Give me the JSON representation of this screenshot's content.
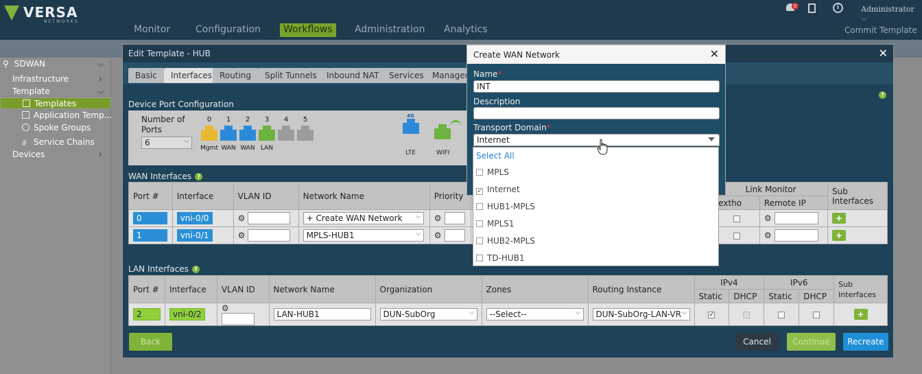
{
  "app": {
    "logo_text": "VERSA",
    "logo_sub": "NETWORKS",
    "nav": [
      "Monitor",
      "Configuration",
      "Workflows",
      "Administration",
      "Analytics"
    ],
    "nav_active": "Workflows",
    "commit": "Commit Template",
    "notif_count": "0",
    "user": "Administrator"
  },
  "sidebar": {
    "root": "SDWAN",
    "items": [
      {
        "label": "Infrastructure"
      },
      {
        "label": "Template"
      },
      {
        "label": "Templates"
      },
      {
        "label": "Application Temp..."
      },
      {
        "label": "Spoke Groups"
      },
      {
        "label": "Service Chains"
      },
      {
        "label": "Devices"
      }
    ]
  },
  "edit_template": {
    "title": "Edit Template - HUB",
    "tabs": [
      "Basic",
      "Interfaces",
      "Routing",
      "Split Tunnels",
      "Inbound NAT",
      "Services",
      "Managem"
    ],
    "active_tab": "Interfaces",
    "device_port": {
      "label": "Device Port Configuration",
      "number_of_ports_label": "Number of Ports",
      "number_of_ports_value": "6",
      "ports": [
        {
          "num": "0",
          "role": "Mgmt",
          "color": "#e8b830"
        },
        {
          "num": "1",
          "role": "WAN",
          "color": "#2b8ad8"
        },
        {
          "num": "2",
          "role": "WAN",
          "color": "#2b8ad8"
        },
        {
          "num": "3",
          "role": "LAN",
          "color": "#6db33f"
        },
        {
          "num": "4",
          "role": "",
          "color": "#9c9c9c"
        },
        {
          "num": "5",
          "role": "",
          "color": "#9c9c9c"
        }
      ],
      "lte": {
        "label": "LTE",
        "badge": "4G"
      },
      "wifi": {
        "label": "WIFI"
      }
    },
    "wan": {
      "label": "WAN Interfaces",
      "headers": [
        "Port #",
        "Interface",
        "VLAN ID",
        "Network Name",
        "Priority"
      ],
      "link_monitor": "Link Monitor",
      "nexthop": "extho",
      "remote_ip": "Remote IP",
      "sub_interfaces": "Sub Interfaces",
      "rows": [
        {
          "port": "0",
          "interface": "vni-0/0",
          "network": "+ Create WAN Network"
        },
        {
          "port": "1",
          "interface": "vni-0/1",
          "network": "MPLS-HUB1"
        }
      ]
    },
    "lan": {
      "label": "LAN Interfaces",
      "headers": [
        "Port #",
        "Interface",
        "VLAN ID",
        "Network Name",
        "Organization",
        "Zones",
        "Routing Instance"
      ],
      "ipv4": "IPv4",
      "ipv6": "IPv6",
      "static": "Static",
      "dhcp": "DHCP",
      "sub_interfaces": "Sub Interfaces",
      "row": {
        "port": "2",
        "interface": "vni-0/2",
        "network": "LAN-HUB1",
        "organization": "DUN-SubOrg",
        "zones": "--Select--",
        "routing": "DUN-SubOrg-LAN-VR"
      }
    },
    "buttons": {
      "back": "Back",
      "cancel": "Cancel",
      "continue": "Continue",
      "recreate": "Recreate"
    }
  },
  "create_wan": {
    "title": "Create WAN Network",
    "name_label": "Name",
    "name_value": "INT",
    "desc_label": "Description",
    "desc_value": "",
    "td_label": "Transport Domain",
    "td_value": "Internet",
    "select_all": "Select All",
    "options": [
      {
        "label": "MPLS",
        "checked": false
      },
      {
        "label": "Internet",
        "checked": true
      },
      {
        "label": "HUB1-MPLS",
        "checked": false
      },
      {
        "label": "MPLS1",
        "checked": false
      },
      {
        "label": "HUB2-MPLS",
        "checked": false
      },
      {
        "label": "TD-HUB1",
        "checked": false
      }
    ]
  }
}
